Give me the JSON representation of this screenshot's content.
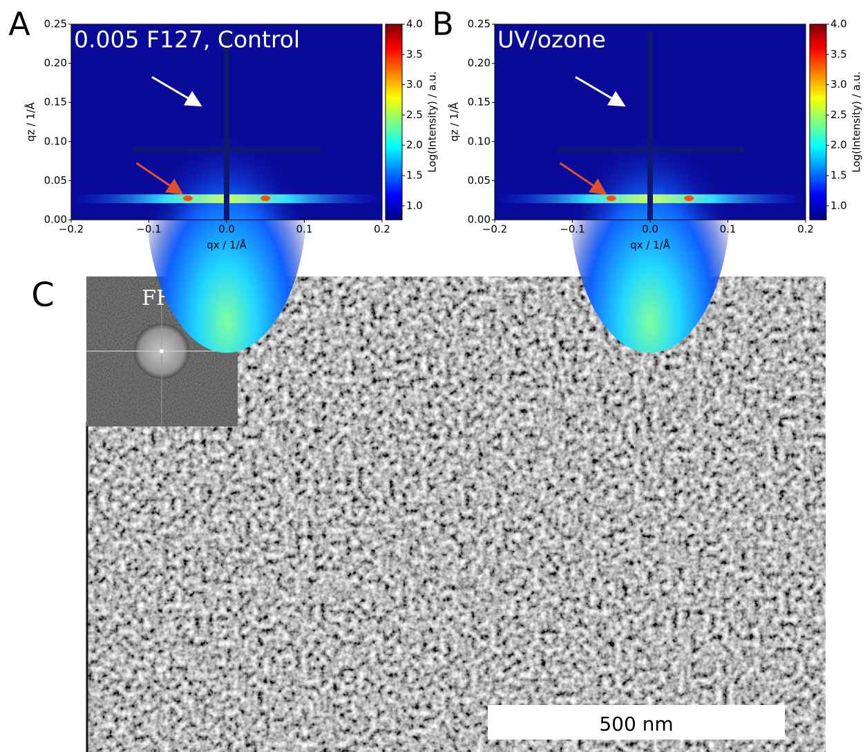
{
  "chart_data": [
    {
      "type": "heatmap",
      "label": "A",
      "title": "0.005 F127, Control",
      "xlabel": "qx / 1/Å",
      "ylabel": "qz / 1/Å",
      "colorbar_label": "Log(Intensity) / a.u.",
      "xlim": [
        -0.2,
        0.2
      ],
      "ylim": [
        0,
        0.25
      ],
      "clim": [
        0.77,
        4.0
      ],
      "xticks": [
        {
          "value": -0.2,
          "label": "−0.2"
        },
        {
          "value": -0.1,
          "label": "−0.1"
        },
        {
          "value": 0,
          "label": "0.0"
        },
        0.1,
        0.2
      ],
      "yticks": [
        {
          "value": 0,
          "label": "0.00"
        },
        0.05,
        {
          "value": 0.1,
          "label": "0.10"
        },
        0.15,
        {
          "value": 0.2,
          "label": "0.20"
        },
        0.25
      ],
      "cticks": [
        {
          "value": 1,
          "label": "1.0"
        },
        1.5,
        {
          "value": 2,
          "label": "2.0"
        },
        2.5,
        {
          "value": 3,
          "label": "3.0"
        },
        3.5,
        {
          "value": 4,
          "label": "4.0"
        }
      ]
    },
    {
      "type": "heatmap",
      "label": "B",
      "title": "UV/ozone",
      "xlabel": "qx / 1/Å",
      "ylabel": "qz / 1/Å",
      "colorbar_label": "Log(Intensity) / a.u.",
      "xlim": [
        -0.2,
        0.2
      ],
      "ylim": [
        0,
        0.25
      ],
      "clim": [
        0.77,
        4.0
      ],
      "xticks": [
        {
          "value": -0.2,
          "label": "−0.2"
        },
        {
          "value": -0.1,
          "label": "−0.1"
        },
        {
          "value": 0,
          "label": "0.0"
        },
        0.1,
        0.2
      ],
      "yticks": [
        {
          "value": 0,
          "label": "0.00"
        },
        0.05,
        {
          "value": 0.1,
          "label": "0.10"
        },
        0.15,
        {
          "value": 0.2,
          "label": "0.20"
        },
        0.25
      ],
      "cticks": [
        {
          "value": 1,
          "label": "1.0"
        },
        1.5,
        {
          "value": 2,
          "label": "2.0"
        },
        2.5,
        {
          "value": 3,
          "label": "3.0"
        },
        3.5,
        {
          "value": 4,
          "label": "4.0"
        }
      ]
    }
  ],
  "panel_c": {
    "label": "C",
    "inset_label": "FFT",
    "scale_bar": "500 nm"
  }
}
